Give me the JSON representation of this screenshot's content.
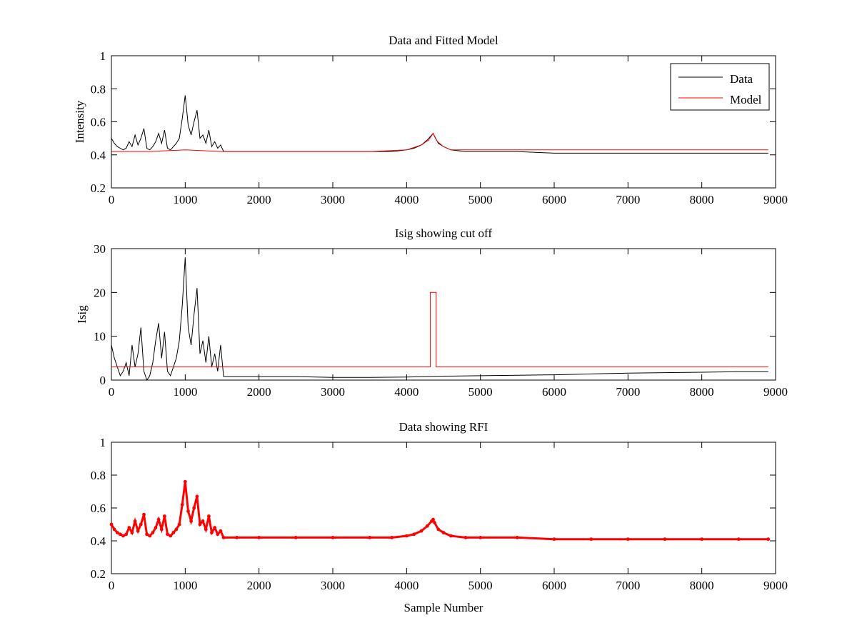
{
  "chart_data": [
    {
      "type": "line",
      "title": "Data and Fitted Model",
      "xlabel": "",
      "ylabel": "Intensity",
      "xlim": [
        0,
        9000
      ],
      "ylim": [
        0.2,
        1
      ],
      "xticks": [
        0,
        1000,
        2000,
        3000,
        4000,
        5000,
        6000,
        7000,
        8000,
        9000
      ],
      "yticks": [
        0.2,
        0.4,
        0.6,
        0.8,
        1
      ],
      "ytick_labels": [
        "0.2",
        "0.4",
        "0.6",
        "0.8",
        "1"
      ],
      "grid": false,
      "legend": "top-right",
      "series": [
        {
          "name": "Data",
          "color": "#000000",
          "style": "line",
          "points": [
            [
              0,
              0.5
            ],
            [
              40,
              0.47
            ],
            [
              80,
              0.45
            ],
            [
              120,
              0.44
            ],
            [
              160,
              0.43
            ],
            [
              200,
              0.44
            ],
            [
              240,
              0.48
            ],
            [
              280,
              0.45
            ],
            [
              320,
              0.52
            ],
            [
              360,
              0.46
            ],
            [
              400,
              0.5
            ],
            [
              440,
              0.56
            ],
            [
              480,
              0.44
            ],
            [
              520,
              0.43
            ],
            [
              560,
              0.45
            ],
            [
              600,
              0.48
            ],
            [
              640,
              0.53
            ],
            [
              680,
              0.47
            ],
            [
              720,
              0.55
            ],
            [
              760,
              0.44
            ],
            [
              800,
              0.43
            ],
            [
              840,
              0.45
            ],
            [
              880,
              0.47
            ],
            [
              920,
              0.5
            ],
            [
              960,
              0.62
            ],
            [
              1000,
              0.76
            ],
            [
              1040,
              0.58
            ],
            [
              1080,
              0.52
            ],
            [
              1120,
              0.6
            ],
            [
              1160,
              0.67
            ],
            [
              1200,
              0.5
            ],
            [
              1240,
              0.52
            ],
            [
              1280,
              0.47
            ],
            [
              1320,
              0.55
            ],
            [
              1360,
              0.45
            ],
            [
              1400,
              0.48
            ],
            [
              1440,
              0.44
            ],
            [
              1480,
              0.46
            ],
            [
              1520,
              0.42
            ],
            [
              1700,
              0.42
            ],
            [
              2000,
              0.42
            ],
            [
              2500,
              0.42
            ],
            [
              3000,
              0.42
            ],
            [
              3500,
              0.42
            ],
            [
              3800,
              0.42
            ],
            [
              4000,
              0.43
            ],
            [
              4100,
              0.44
            ],
            [
              4200,
              0.46
            ],
            [
              4280,
              0.49
            ],
            [
              4340,
              0.52
            ],
            [
              4360,
              0.53
            ],
            [
              4380,
              0.51
            ],
            [
              4430,
              0.47
            ],
            [
              4500,
              0.45
            ],
            [
              4600,
              0.43
            ],
            [
              4800,
              0.42
            ],
            [
              5000,
              0.42
            ],
            [
              5500,
              0.42
            ],
            [
              6000,
              0.41
            ],
            [
              6500,
              0.41
            ],
            [
              7000,
              0.41
            ],
            [
              7500,
              0.41
            ],
            [
              8000,
              0.41
            ],
            [
              8500,
              0.41
            ],
            [
              8900,
              0.41
            ]
          ]
        },
        {
          "name": "Model",
          "color": "#ff0000",
          "style": "line",
          "points": [
            [
              0,
              0.42
            ],
            [
              500,
              0.42
            ],
            [
              1000,
              0.43
            ],
            [
              1500,
              0.42
            ],
            [
              2000,
              0.42
            ],
            [
              2600,
              0.42
            ],
            [
              3000,
              0.42
            ],
            [
              3500,
              0.42
            ],
            [
              4000,
              0.43
            ],
            [
              4200,
              0.46
            ],
            [
              4300,
              0.49
            ],
            [
              4360,
              0.53
            ],
            [
              4420,
              0.48
            ],
            [
              4500,
              0.45
            ],
            [
              4600,
              0.43
            ],
            [
              5000,
              0.43
            ],
            [
              6000,
              0.43
            ],
            [
              7000,
              0.43
            ],
            [
              7500,
              0.43
            ],
            [
              8000,
              0.43
            ],
            [
              8600,
              0.43
            ],
            [
              8900,
              0.43
            ]
          ]
        }
      ]
    },
    {
      "type": "line",
      "title": "Isig showing cut off",
      "xlabel": "",
      "ylabel": "Isig",
      "xlim": [
        0,
        9000
      ],
      "ylim": [
        0,
        30
      ],
      "xticks": [
        0,
        1000,
        2000,
        3000,
        4000,
        5000,
        6000,
        7000,
        8000,
        9000
      ],
      "yticks": [
        0,
        10,
        20,
        30
      ],
      "ytick_labels": [
        "0",
        "10",
        "20",
        "30"
      ],
      "grid": false,
      "series": [
        {
          "color": "#000000",
          "style": "line",
          "points": [
            [
              0,
              8
            ],
            [
              40,
              5
            ],
            [
              80,
              3
            ],
            [
              120,
              1
            ],
            [
              160,
              2
            ],
            [
              200,
              4
            ],
            [
              240,
              1
            ],
            [
              280,
              8
            ],
            [
              320,
              3
            ],
            [
              360,
              6
            ],
            [
              400,
              12
            ],
            [
              440,
              2
            ],
            [
              480,
              0
            ],
            [
              520,
              1
            ],
            [
              560,
              4
            ],
            [
              600,
              9
            ],
            [
              640,
              13
            ],
            [
              680,
              5
            ],
            [
              720,
              11
            ],
            [
              760,
              2
            ],
            [
              800,
              1
            ],
            [
              840,
              3
            ],
            [
              880,
              5
            ],
            [
              920,
              9
            ],
            [
              960,
              17
            ],
            [
              1000,
              28
            ],
            [
              1040,
              12
            ],
            [
              1080,
              8
            ],
            [
              1120,
              15
            ],
            [
              1160,
              21
            ],
            [
              1200,
              6
            ],
            [
              1240,
              9
            ],
            [
              1280,
              4
            ],
            [
              1320,
              10
            ],
            [
              1360,
              3
            ],
            [
              1400,
              6
            ],
            [
              1440,
              2
            ],
            [
              1480,
              8
            ],
            [
              1520,
              0.8
            ],
            [
              2000,
              0.8
            ],
            [
              2500,
              0.8
            ],
            [
              3000,
              0.6
            ],
            [
              3500,
              0.6
            ],
            [
              4000,
              0.7
            ],
            [
              4500,
              0.9
            ],
            [
              5000,
              1.0
            ],
            [
              5500,
              1.1
            ],
            [
              6000,
              1.2
            ],
            [
              6500,
              1.4
            ],
            [
              7000,
              1.6
            ],
            [
              7500,
              1.7
            ],
            [
              8000,
              1.8
            ],
            [
              8500,
              1.9
            ],
            [
              8900,
              1.9
            ]
          ]
        },
        {
          "color": "#ff0000",
          "style": "line",
          "points": [
            [
              0,
              3
            ],
            [
              4320,
              3
            ],
            [
              4320,
              20
            ],
            [
              4400,
              20
            ],
            [
              4400,
              3
            ],
            [
              8900,
              3
            ]
          ]
        }
      ]
    },
    {
      "type": "scatter",
      "title": "Data showing RFI",
      "xlabel": "Sample Number",
      "ylabel": "",
      "xlim": [
        0,
        9000
      ],
      "ylim": [
        0.2,
        1
      ],
      "xticks": [
        0,
        1000,
        2000,
        3000,
        4000,
        5000,
        6000,
        7000,
        8000,
        9000
      ],
      "yticks": [
        0.2,
        0.4,
        0.6,
        0.8,
        1
      ],
      "ytick_labels": [
        "0.2",
        "0.4",
        "0.6",
        "0.8",
        "1"
      ],
      "grid": false,
      "series": [
        {
          "color": "#ff0000",
          "style": "markers",
          "points": [
            [
              0,
              0.5
            ],
            [
              40,
              0.47
            ],
            [
              80,
              0.45
            ],
            [
              120,
              0.44
            ],
            [
              160,
              0.43
            ],
            [
              200,
              0.44
            ],
            [
              240,
              0.48
            ],
            [
              280,
              0.45
            ],
            [
              320,
              0.52
            ],
            [
              360,
              0.46
            ],
            [
              400,
              0.5
            ],
            [
              440,
              0.56
            ],
            [
              480,
              0.44
            ],
            [
              520,
              0.43
            ],
            [
              560,
              0.45
            ],
            [
              600,
              0.48
            ],
            [
              640,
              0.53
            ],
            [
              680,
              0.47
            ],
            [
              720,
              0.55
            ],
            [
              760,
              0.44
            ],
            [
              800,
              0.43
            ],
            [
              840,
              0.45
            ],
            [
              880,
              0.47
            ],
            [
              920,
              0.5
            ],
            [
              960,
              0.62
            ],
            [
              1000,
              0.76
            ],
            [
              1040,
              0.58
            ],
            [
              1080,
              0.52
            ],
            [
              1120,
              0.6
            ],
            [
              1160,
              0.67
            ],
            [
              1200,
              0.5
            ],
            [
              1240,
              0.52
            ],
            [
              1280,
              0.47
            ],
            [
              1320,
              0.55
            ],
            [
              1360,
              0.45
            ],
            [
              1400,
              0.48
            ],
            [
              1440,
              0.44
            ],
            [
              1480,
              0.46
            ],
            [
              1520,
              0.42
            ],
            [
              1700,
              0.42
            ],
            [
              2000,
              0.42
            ],
            [
              2500,
              0.42
            ],
            [
              3000,
              0.42
            ],
            [
              3500,
              0.42
            ],
            [
              3800,
              0.42
            ],
            [
              4000,
              0.43
            ],
            [
              4100,
              0.44
            ],
            [
              4200,
              0.46
            ],
            [
              4280,
              0.49
            ],
            [
              4340,
              0.52
            ],
            [
              4360,
              0.53
            ],
            [
              4380,
              0.51
            ],
            [
              4430,
              0.47
            ],
            [
              4500,
              0.45
            ],
            [
              4600,
              0.43
            ],
            [
              4800,
              0.42
            ],
            [
              5000,
              0.42
            ],
            [
              5500,
              0.42
            ],
            [
              6000,
              0.41
            ],
            [
              6500,
              0.41
            ],
            [
              7000,
              0.41
            ],
            [
              7500,
              0.41
            ],
            [
              8000,
              0.41
            ],
            [
              8500,
              0.41
            ],
            [
              8900,
              0.41
            ]
          ]
        }
      ]
    }
  ]
}
